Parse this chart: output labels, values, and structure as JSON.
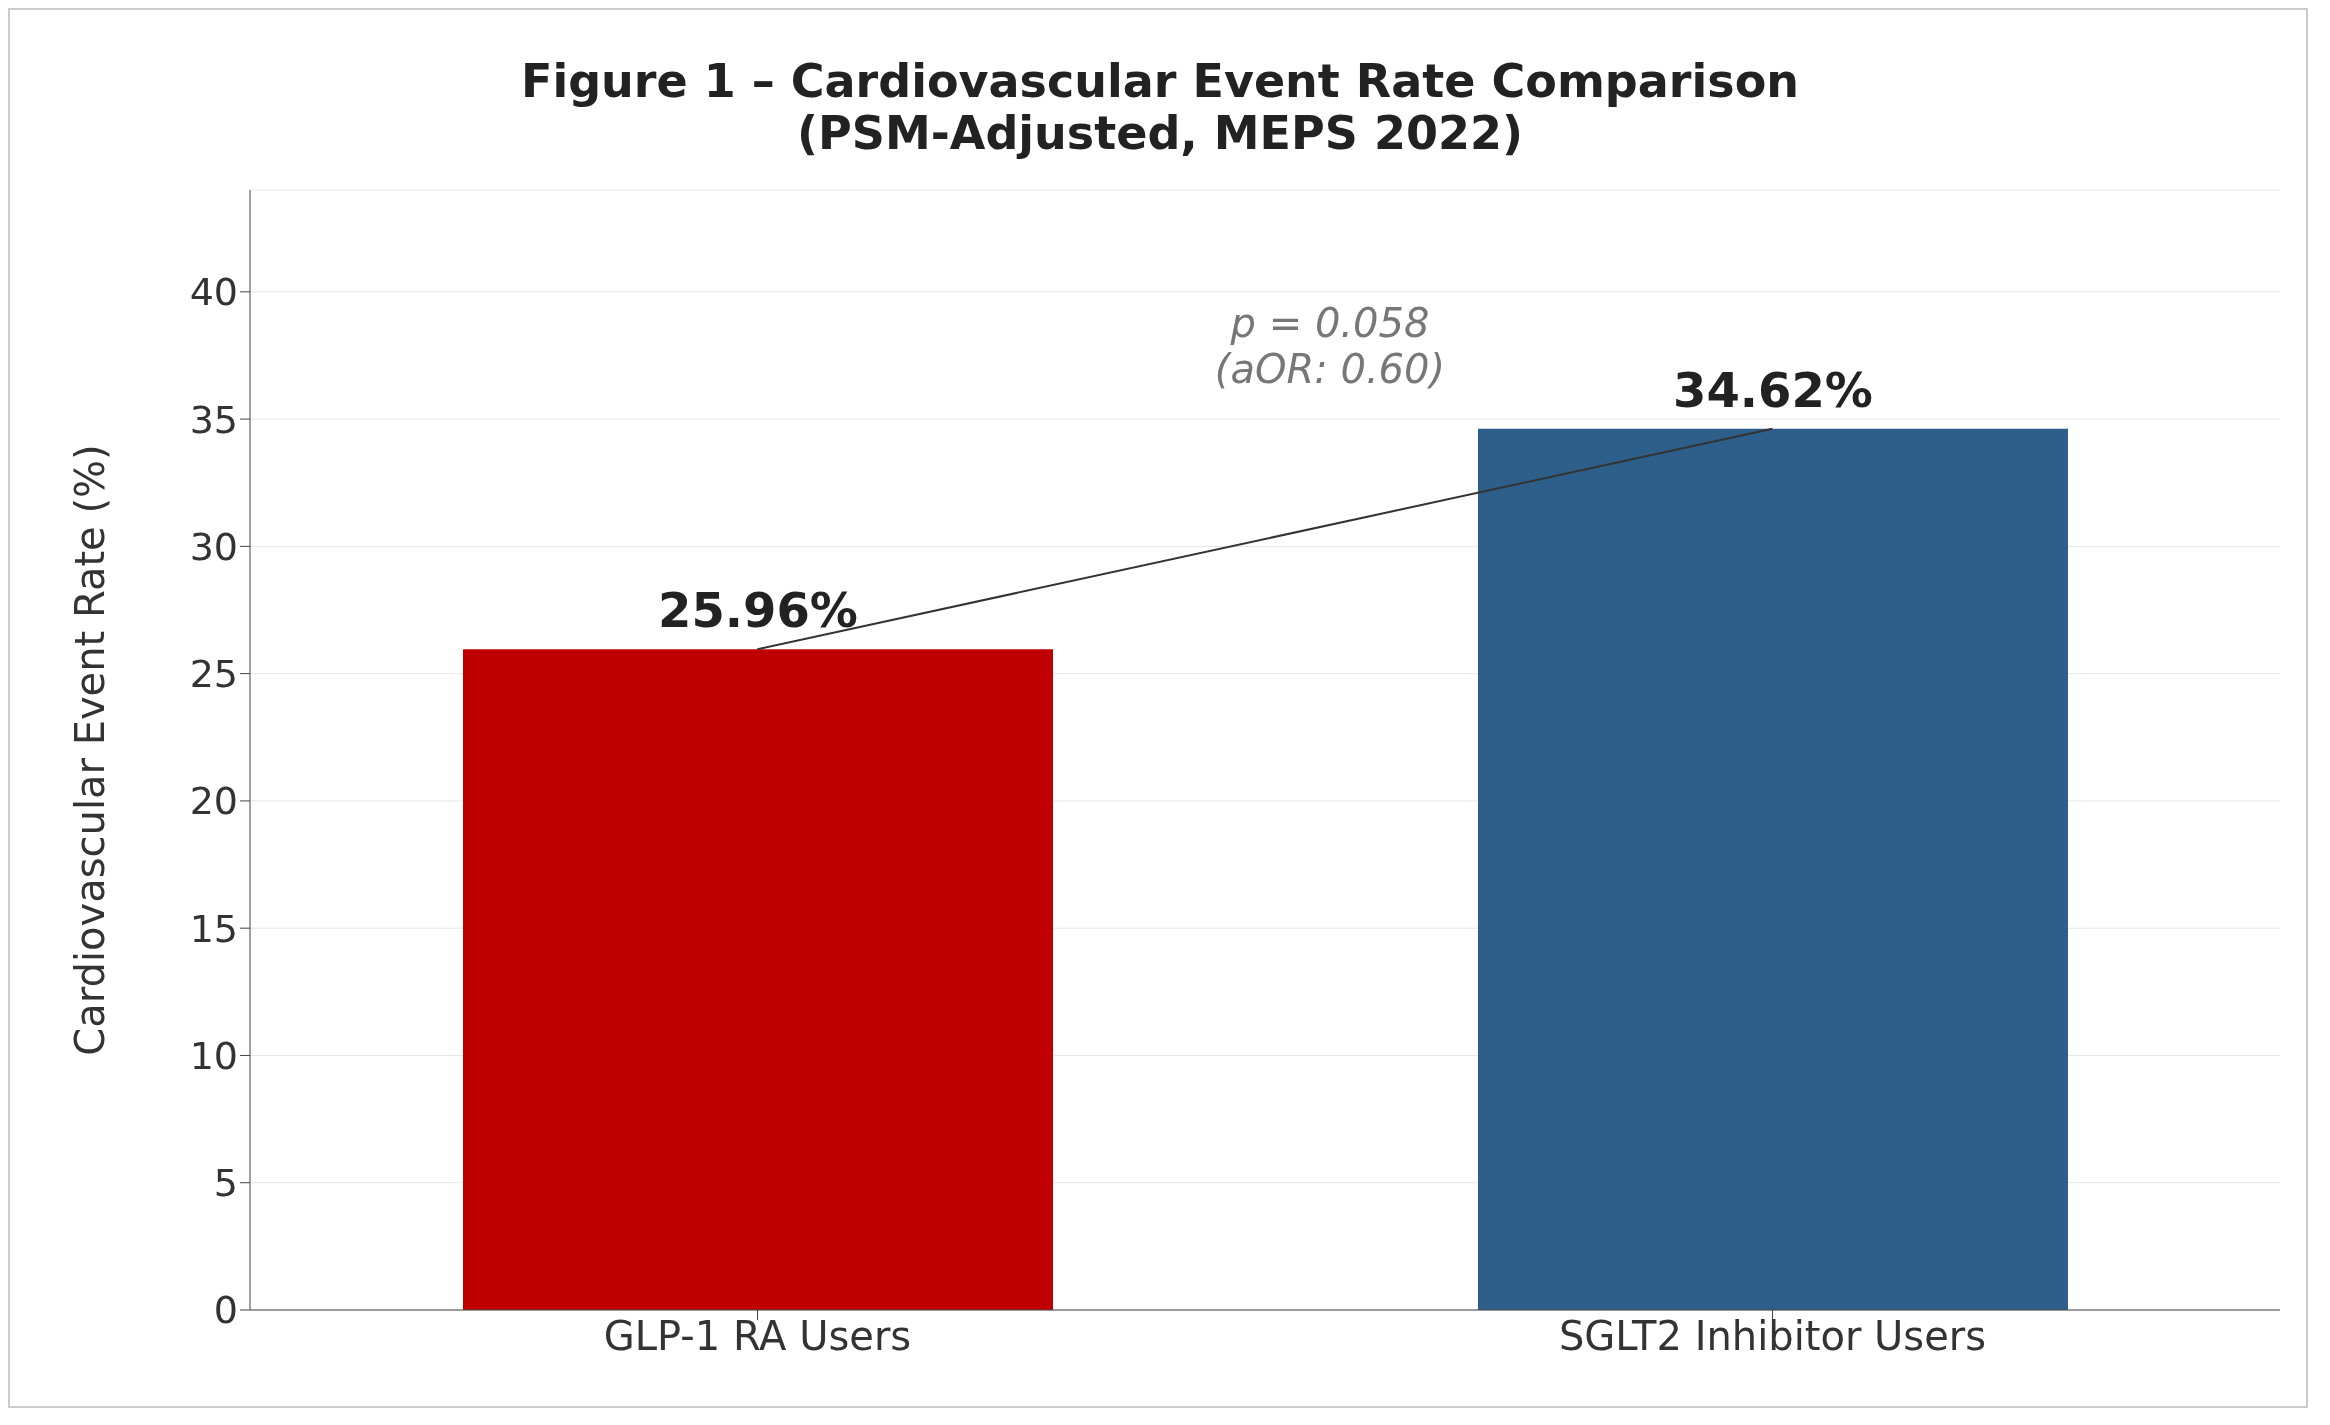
{
  "chart_data": {
    "type": "bar",
    "title": "Figure 1 – Cardiovascular Event Rate Comparison\n(PSM-Adjusted, MEPS 2022)",
    "ylabel": "Cardiovascular Event Rate (%)",
    "categories": [
      "GLP-1 RA Users",
      "SGLT2 Inhibitor Users"
    ],
    "series": [
      {
        "values": [
          25.96,
          34.62
        ],
        "colors": [
          "#c00000",
          "#2e5f8a"
        ],
        "value_labels": [
          "25.96%",
          "34.62%"
        ]
      },
      {
        "type": "line",
        "values": [
          25.96,
          34.62
        ],
        "color": "#333333"
      }
    ],
    "ylim": [
      0,
      44
    ],
    "yticks": [
      0,
      5,
      10,
      15,
      20,
      25,
      30,
      35,
      40
    ],
    "grid": "y",
    "annotations": [
      "p = 0.058\n(aOR: 0.60)"
    ]
  }
}
